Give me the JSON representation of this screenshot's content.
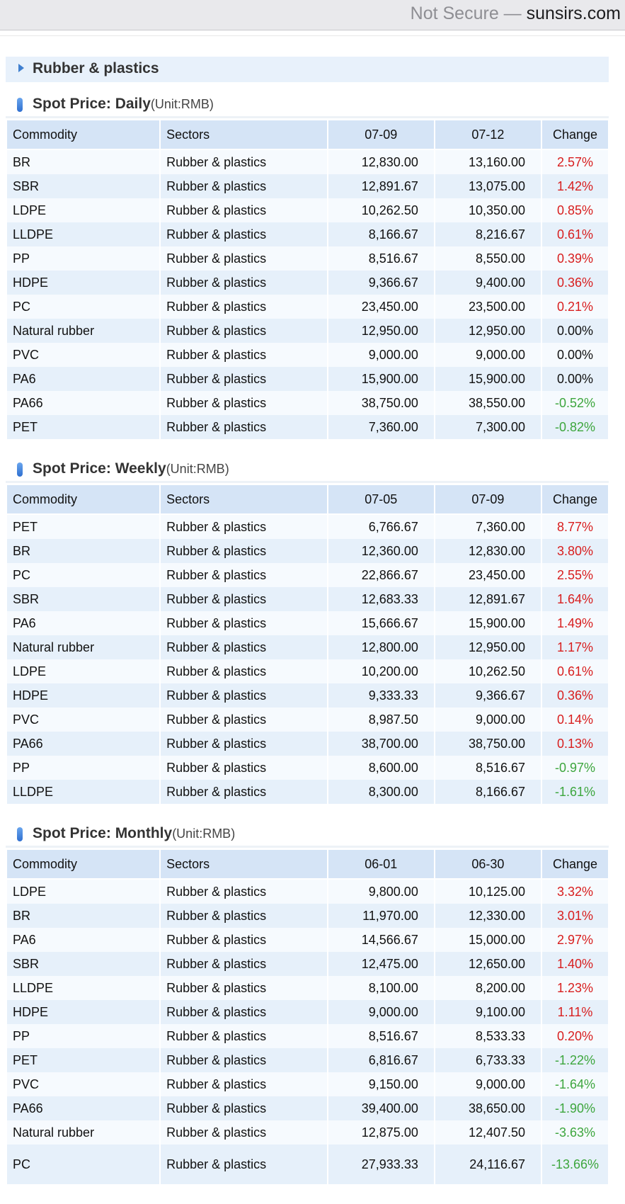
{
  "browser": {
    "not_secure": "Not Secure",
    "separator": " — ",
    "domain": "sunsirs.com"
  },
  "category": "Rubber & plastics",
  "columns": {
    "commodity": "Commodity",
    "sectors": "Sectors",
    "change": "Change"
  },
  "sections": [
    {
      "title": "Spot Price: Daily",
      "unit": "(Unit:RMB)",
      "date1": "07-09",
      "date2": "07-12",
      "rows": [
        {
          "commodity": "BR",
          "sector": "Rubber & plastics",
          "p1": "12,830.00",
          "p2": "13,160.00",
          "change": "2.57%",
          "dir": "up"
        },
        {
          "commodity": "SBR",
          "sector": "Rubber & plastics",
          "p1": "12,891.67",
          "p2": "13,075.00",
          "change": "1.42%",
          "dir": "up"
        },
        {
          "commodity": "LDPE",
          "sector": "Rubber & plastics",
          "p1": "10,262.50",
          "p2": "10,350.00",
          "change": "0.85%",
          "dir": "up"
        },
        {
          "commodity": "LLDPE",
          "sector": "Rubber & plastics",
          "p1": "8,166.67",
          "p2": "8,216.67",
          "change": "0.61%",
          "dir": "up"
        },
        {
          "commodity": "PP",
          "sector": "Rubber & plastics",
          "p1": "8,516.67",
          "p2": "8,550.00",
          "change": "0.39%",
          "dir": "up"
        },
        {
          "commodity": "HDPE",
          "sector": "Rubber & plastics",
          "p1": "9,366.67",
          "p2": "9,400.00",
          "change": "0.36%",
          "dir": "up"
        },
        {
          "commodity": "PC",
          "sector": "Rubber & plastics",
          "p1": "23,450.00",
          "p2": "23,500.00",
          "change": "0.21%",
          "dir": "up"
        },
        {
          "commodity": "Natural rubber",
          "sector": "Rubber & plastics",
          "p1": "12,950.00",
          "p2": "12,950.00",
          "change": "0.00%",
          "dir": "flat"
        },
        {
          "commodity": "PVC",
          "sector": "Rubber & plastics",
          "p1": "9,000.00",
          "p2": "9,000.00",
          "change": "0.00%",
          "dir": "flat"
        },
        {
          "commodity": "PA6",
          "sector": "Rubber & plastics",
          "p1": "15,900.00",
          "p2": "15,900.00",
          "change": "0.00%",
          "dir": "flat"
        },
        {
          "commodity": "PA66",
          "sector": "Rubber & plastics",
          "p1": "38,750.00",
          "p2": "38,550.00",
          "change": "-0.52%",
          "dir": "down"
        },
        {
          "commodity": "PET",
          "sector": "Rubber & plastics",
          "p1": "7,360.00",
          "p2": "7,300.00",
          "change": "-0.82%",
          "dir": "down"
        }
      ]
    },
    {
      "title": "Spot Price: Weekly",
      "unit": "(Unit:RMB)",
      "date1": "07-05",
      "date2": "07-09",
      "rows": [
        {
          "commodity": "PET",
          "sector": "Rubber & plastics",
          "p1": "6,766.67",
          "p2": "7,360.00",
          "change": "8.77%",
          "dir": "up"
        },
        {
          "commodity": "BR",
          "sector": "Rubber & plastics",
          "p1": "12,360.00",
          "p2": "12,830.00",
          "change": "3.80%",
          "dir": "up"
        },
        {
          "commodity": "PC",
          "sector": "Rubber & plastics",
          "p1": "22,866.67",
          "p2": "23,450.00",
          "change": "2.55%",
          "dir": "up"
        },
        {
          "commodity": "SBR",
          "sector": "Rubber & plastics",
          "p1": "12,683.33",
          "p2": "12,891.67",
          "change": "1.64%",
          "dir": "up"
        },
        {
          "commodity": "PA6",
          "sector": "Rubber & plastics",
          "p1": "15,666.67",
          "p2": "15,900.00",
          "change": "1.49%",
          "dir": "up"
        },
        {
          "commodity": "Natural rubber",
          "sector": "Rubber & plastics",
          "p1": "12,800.00",
          "p2": "12,950.00",
          "change": "1.17%",
          "dir": "up"
        },
        {
          "commodity": "LDPE",
          "sector": "Rubber & plastics",
          "p1": "10,200.00",
          "p2": "10,262.50",
          "change": "0.61%",
          "dir": "up"
        },
        {
          "commodity": "HDPE",
          "sector": "Rubber & plastics",
          "p1": "9,333.33",
          "p2": "9,366.67",
          "change": "0.36%",
          "dir": "up"
        },
        {
          "commodity": "PVC",
          "sector": "Rubber & plastics",
          "p1": "8,987.50",
          "p2": "9,000.00",
          "change": "0.14%",
          "dir": "up"
        },
        {
          "commodity": "PA66",
          "sector": "Rubber & plastics",
          "p1": "38,700.00",
          "p2": "38,750.00",
          "change": "0.13%",
          "dir": "up"
        },
        {
          "commodity": "PP",
          "sector": "Rubber & plastics",
          "p1": "8,600.00",
          "p2": "8,516.67",
          "change": "-0.97%",
          "dir": "down"
        },
        {
          "commodity": "LLDPE",
          "sector": "Rubber & plastics",
          "p1": "8,300.00",
          "p2": "8,166.67",
          "change": "-1.61%",
          "dir": "down"
        }
      ]
    },
    {
      "title": "Spot Price: Monthly",
      "unit": "(Unit:RMB)",
      "date1": "06-01",
      "date2": "06-30",
      "rows": [
        {
          "commodity": "LDPE",
          "sector": "Rubber & plastics",
          "p1": "9,800.00",
          "p2": "10,125.00",
          "change": "3.32%",
          "dir": "up"
        },
        {
          "commodity": "BR",
          "sector": "Rubber & plastics",
          "p1": "11,970.00",
          "p2": "12,330.00",
          "change": "3.01%",
          "dir": "up"
        },
        {
          "commodity": "PA6",
          "sector": "Rubber & plastics",
          "p1": "14,566.67",
          "p2": "15,000.00",
          "change": "2.97%",
          "dir": "up"
        },
        {
          "commodity": "SBR",
          "sector": "Rubber & plastics",
          "p1": "12,475.00",
          "p2": "12,650.00",
          "change": "1.40%",
          "dir": "up"
        },
        {
          "commodity": "LLDPE",
          "sector": "Rubber & plastics",
          "p1": "8,100.00",
          "p2": "8,200.00",
          "change": "1.23%",
          "dir": "up"
        },
        {
          "commodity": "HDPE",
          "sector": "Rubber & plastics",
          "p1": "9,000.00",
          "p2": "9,100.00",
          "change": "1.11%",
          "dir": "up"
        },
        {
          "commodity": "PP",
          "sector": "Rubber & plastics",
          "p1": "8,516.67",
          "p2": "8,533.33",
          "change": "0.20%",
          "dir": "up"
        },
        {
          "commodity": "PET",
          "sector": "Rubber & plastics",
          "p1": "6,816.67",
          "p2": "6,733.33",
          "change": "-1.22%",
          "dir": "down"
        },
        {
          "commodity": "PVC",
          "sector": "Rubber & plastics",
          "p1": "9,150.00",
          "p2": "9,000.00",
          "change": "-1.64%",
          "dir": "down"
        },
        {
          "commodity": "PA66",
          "sector": "Rubber & plastics",
          "p1": "39,400.00",
          "p2": "38,650.00",
          "change": "-1.90%",
          "dir": "down"
        },
        {
          "commodity": "Natural rubber",
          "sector": "Rubber & plastics",
          "p1": "12,875.00",
          "p2": "12,407.50",
          "change": "-3.63%",
          "dir": "down"
        },
        {
          "commodity": "PC",
          "sector": "Rubber & plastics",
          "p1": "27,933.33",
          "p2": "24,116.67",
          "change": "-13.66%",
          "dir": "down",
          "wrap": true
        }
      ]
    }
  ]
}
